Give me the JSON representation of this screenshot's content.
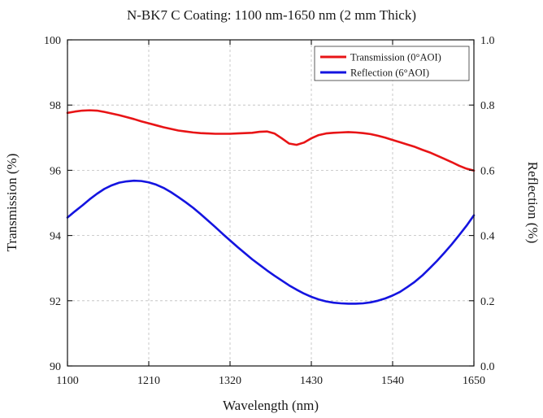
{
  "chart_data": {
    "type": "line",
    "title": "N-BK7 C Coating: 1100 nm-1650 nm (2 mm Thick)",
    "xlabel": "Wavelength (nm)",
    "ylabel_left": "Transmission (%)",
    "ylabel_right": "Reflection (%)",
    "xlim": [
      1100,
      1650
    ],
    "ylim_left": [
      90,
      100
    ],
    "ylim_right": [
      0.0,
      1.0
    ],
    "x_ticks": [
      "1100",
      "1210",
      "1320",
      "1430",
      "1540",
      "1650"
    ],
    "y_ticks_left": [
      "90",
      "92",
      "94",
      "96",
      "98",
      "100"
    ],
    "y_ticks_right": [
      "0.0",
      "0.2",
      "0.4",
      "0.6",
      "0.8",
      "1.0"
    ],
    "legend_position": "top-right",
    "grid": true,
    "series": [
      {
        "name": "Transmission (0°AOI)",
        "axis": "left",
        "color": "#e81416",
        "x": [
          1100,
          1110,
          1120,
          1130,
          1140,
          1150,
          1160,
          1170,
          1180,
          1190,
          1200,
          1210,
          1220,
          1230,
          1240,
          1250,
          1260,
          1270,
          1280,
          1290,
          1300,
          1310,
          1320,
          1330,
          1340,
          1350,
          1360,
          1370,
          1380,
          1390,
          1400,
          1410,
          1420,
          1430,
          1440,
          1450,
          1460,
          1470,
          1480,
          1490,
          1500,
          1510,
          1520,
          1530,
          1540,
          1550,
          1560,
          1570,
          1580,
          1590,
          1600,
          1610,
          1620,
          1630,
          1640,
          1650
        ],
        "y": [
          97.76,
          97.8,
          97.83,
          97.84,
          97.83,
          97.79,
          97.74,
          97.69,
          97.63,
          97.57,
          97.5,
          97.44,
          97.38,
          97.32,
          97.27,
          97.22,
          97.19,
          97.16,
          97.14,
          97.13,
          97.12,
          97.12,
          97.12,
          97.13,
          97.14,
          97.15,
          97.18,
          97.19,
          97.13,
          96.98,
          96.82,
          96.78,
          96.85,
          96.98,
          97.08,
          97.13,
          97.15,
          97.16,
          97.17,
          97.16,
          97.14,
          97.11,
          97.06,
          97.0,
          96.93,
          96.86,
          96.79,
          96.72,
          96.63,
          96.55,
          96.45,
          96.35,
          96.25,
          96.14,
          96.05,
          95.99
        ]
      },
      {
        "name": "Reflection (6°AOI)",
        "axis": "right",
        "color": "#1414e0",
        "x": [
          1100,
          1110,
          1120,
          1130,
          1140,
          1150,
          1160,
          1170,
          1180,
          1190,
          1200,
          1210,
          1220,
          1230,
          1240,
          1250,
          1260,
          1270,
          1280,
          1290,
          1300,
          1310,
          1320,
          1330,
          1340,
          1350,
          1360,
          1370,
          1380,
          1390,
          1400,
          1410,
          1420,
          1430,
          1440,
          1450,
          1460,
          1470,
          1480,
          1490,
          1500,
          1510,
          1520,
          1530,
          1540,
          1550,
          1560,
          1570,
          1580,
          1590,
          1600,
          1610,
          1620,
          1630,
          1640,
          1650
        ],
        "y": [
          0.455,
          0.474,
          0.492,
          0.511,
          0.528,
          0.543,
          0.554,
          0.562,
          0.566,
          0.568,
          0.567,
          0.563,
          0.556,
          0.546,
          0.533,
          0.518,
          0.502,
          0.485,
          0.466,
          0.446,
          0.426,
          0.405,
          0.385,
          0.365,
          0.346,
          0.327,
          0.31,
          0.293,
          0.277,
          0.262,
          0.247,
          0.234,
          0.222,
          0.212,
          0.204,
          0.198,
          0.194,
          0.192,
          0.191,
          0.191,
          0.192,
          0.195,
          0.2,
          0.207,
          0.216,
          0.227,
          0.242,
          0.258,
          0.277,
          0.299,
          0.322,
          0.347,
          0.373,
          0.401,
          0.43,
          0.462
        ]
      }
    ]
  }
}
